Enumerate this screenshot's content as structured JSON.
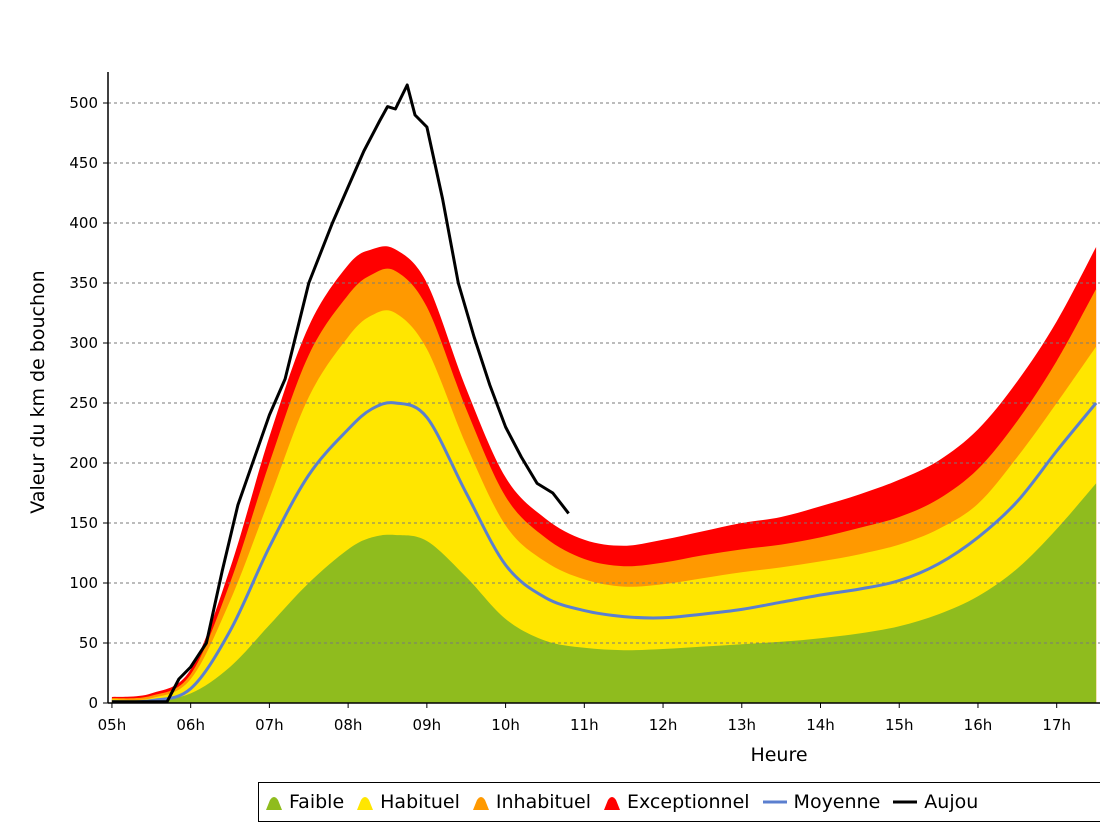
{
  "chart_data": {
    "type": "area",
    "xlabel": "Heure",
    "ylabel": "Valeur du  km de bouchon",
    "x_ticks": [
      "05h",
      "06h",
      "07h",
      "08h",
      "09h",
      "10h",
      "11h",
      "12h",
      "13h",
      "14h",
      "15h",
      "16h",
      "17h"
    ],
    "y_ticks": [
      0,
      50,
      100,
      150,
      200,
      250,
      300,
      350,
      400,
      450,
      500
    ],
    "xlim": [
      4.95,
      17.55
    ],
    "ylim": [
      0,
      540
    ],
    "grid": "horizontal-dashed",
    "legend_position": "bottom",
    "x": [
      5.0,
      5.5,
      6.0,
      6.5,
      7.0,
      7.5,
      8.0,
      8.3,
      8.6,
      9.0,
      9.5,
      10.0,
      10.5,
      11.0,
      11.5,
      12.0,
      12.5,
      13.0,
      13.5,
      14.0,
      14.5,
      15.0,
      15.5,
      16.0,
      16.5,
      17.0,
      17.5
    ],
    "series": [
      {
        "name": "Faible",
        "color": "#8fbc1e",
        "values": [
          2,
          2,
          8,
          30,
          65,
          100,
          128,
          138,
          140,
          135,
          105,
          70,
          52,
          46,
          44,
          45,
          47,
          49,
          51,
          54,
          58,
          64,
          74,
          89,
          112,
          145,
          183
        ]
      },
      {
        "name": "Habituel",
        "color": "#ffe600",
        "values": [
          3,
          4,
          20,
          85,
          170,
          255,
          305,
          323,
          325,
          295,
          215,
          148,
          118,
          103,
          97,
          99,
          104,
          109,
          113,
          118,
          124,
          132,
          145,
          166,
          205,
          250,
          297
        ]
      },
      {
        "name": "Inhabituel",
        "color": "#ff9900",
        "values": [
          4,
          6,
          24,
          100,
          200,
          290,
          340,
          357,
          360,
          330,
          245,
          172,
          138,
          120,
          114,
          117,
          123,
          128,
          132,
          138,
          146,
          155,
          170,
          195,
          235,
          285,
          345
        ]
      },
      {
        "name": "Exceptionnel",
        "color": "#ff0000",
        "values": [
          5,
          8,
          28,
          112,
          222,
          314,
          365,
          378,
          378,
          350,
          262,
          188,
          154,
          136,
          131,
          136,
          143,
          150,
          155,
          164,
          174,
          186,
          202,
          228,
          268,
          318,
          380
        ]
      },
      {
        "name": "Moyenne",
        "color": "#5b7fcf",
        "values": [
          1,
          2,
          12,
          60,
          130,
          190,
          228,
          245,
          250,
          238,
          175,
          115,
          88,
          77,
          72,
          71,
          74,
          78,
          84,
          90,
          95,
          102,
          116,
          138,
          168,
          210,
          250
        ]
      },
      {
        "name": "Aujou",
        "color": "#000000",
        "x": [
          5.0,
          5.7,
          5.85,
          6.0,
          6.2,
          6.4,
          6.6,
          7.0,
          7.2,
          7.5,
          7.8,
          8.0,
          8.2,
          8.4,
          8.5,
          8.6,
          8.75,
          8.85,
          9.0,
          9.2,
          9.4,
          9.6,
          9.8,
          10.0,
          10.2,
          10.4,
          10.6,
          10.8
        ],
        "values": [
          1,
          1,
          20,
          30,
          50,
          110,
          165,
          240,
          270,
          350,
          400,
          430,
          460,
          485,
          497,
          495,
          515,
          490,
          480,
          420,
          350,
          305,
          265,
          230,
          205,
          183,
          175,
          158
        ]
      }
    ]
  },
  "legend": {
    "items": [
      {
        "label": "Faible",
        "color": "#8fbc1e",
        "kind": "area"
      },
      {
        "label": "Habituel",
        "color": "#ffe600",
        "kind": "area"
      },
      {
        "label": "Inhabituel",
        "color": "#ff9900",
        "kind": "area"
      },
      {
        "label": "Exceptionnel",
        "color": "#ff0000",
        "kind": "area"
      },
      {
        "label": "Moyenne",
        "color": "#5b7fcf",
        "kind": "line"
      },
      {
        "label": "Aujou",
        "color": "#000000",
        "kind": "line"
      }
    ]
  }
}
